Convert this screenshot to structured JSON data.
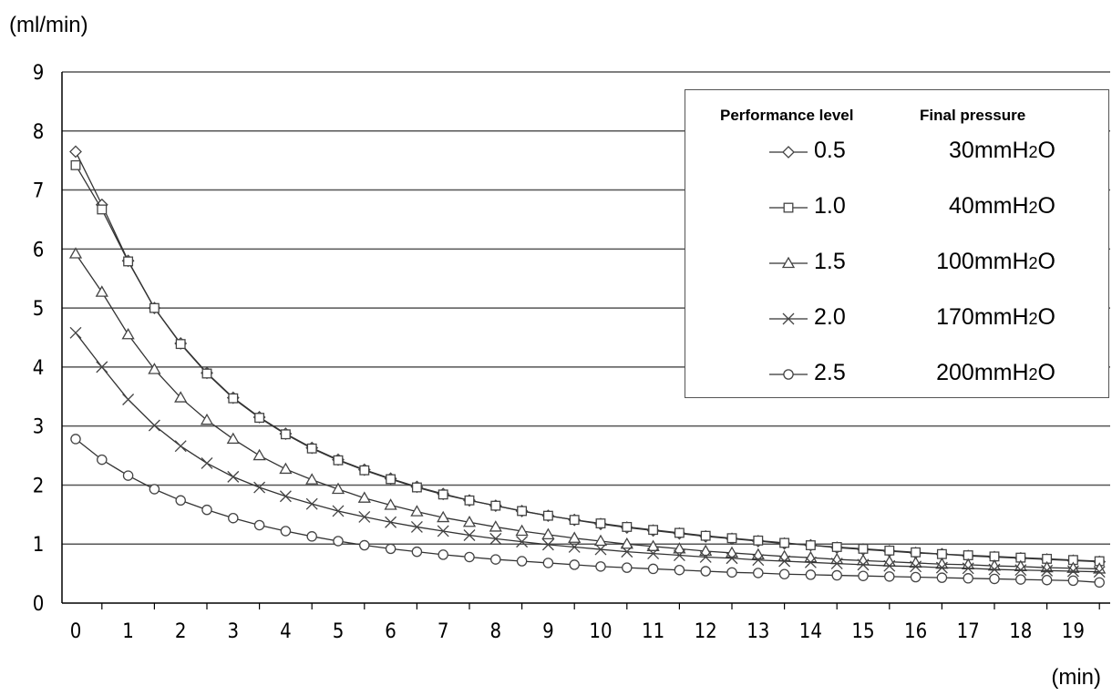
{
  "chart_data": {
    "type": "line",
    "ylabel": "(ml/min)",
    "xlabel": "(min)",
    "ylim": [
      0,
      9
    ],
    "xlim": [
      0,
      19.6
    ],
    "x_ticks": [
      "0",
      "1",
      "2",
      "3",
      "4",
      "5",
      "6",
      "7",
      "8",
      "9",
      "10",
      "11",
      "12",
      "13",
      "14",
      "15",
      "16",
      "17",
      "18",
      "19"
    ],
    "y_ticks": [
      "0",
      "1",
      "2",
      "3",
      "4",
      "5",
      "6",
      "7",
      "8",
      "9"
    ],
    "grid": "horizontal",
    "legend_position": "top-right",
    "legend_headers": {
      "level": "Performance level",
      "pressure": "Final pressure"
    },
    "x": [
      0,
      0.5,
      1,
      1.5,
      2,
      2.5,
      3,
      3.5,
      4,
      4.5,
      5,
      5.5,
      6,
      6.5,
      7,
      7.5,
      8,
      8.5,
      9,
      9.5,
      10,
      10.5,
      11,
      11.5,
      12,
      12.5,
      13,
      13.5,
      14,
      14.5,
      15,
      15.5,
      16,
      16.5,
      17,
      17.5,
      18,
      18.5,
      19,
      19.5
    ],
    "series": [
      {
        "name": "0.5",
        "pressure": "30mmH2O",
        "marker": "diamond",
        "values": [
          7.65,
          6.75,
          5.8,
          5.0,
          4.4,
          3.9,
          3.48,
          3.15,
          2.87,
          2.63,
          2.43,
          2.26,
          2.11,
          1.97,
          1.85,
          1.74,
          1.65,
          1.56,
          1.48,
          1.41,
          1.34,
          1.28,
          1.23,
          1.18,
          1.13,
          1.09,
          1.05,
          1.01,
          0.98,
          0.94,
          0.91,
          0.88,
          0.85,
          0.83,
          0.8,
          0.78,
          0.76,
          0.74,
          0.72,
          0.7
        ]
      },
      {
        "name": "1.0",
        "pressure": "40mmH2O",
        "marker": "square",
        "values": [
          7.42,
          6.67,
          5.79,
          5.0,
          4.39,
          3.89,
          3.47,
          3.14,
          2.86,
          2.62,
          2.42,
          2.25,
          2.1,
          1.96,
          1.84,
          1.74,
          1.65,
          1.56,
          1.48,
          1.41,
          1.35,
          1.29,
          1.24,
          1.19,
          1.14,
          1.1,
          1.06,
          1.02,
          0.98,
          0.95,
          0.92,
          0.89,
          0.86,
          0.83,
          0.81,
          0.79,
          0.77,
          0.75,
          0.73,
          0.71
        ]
      },
      {
        "name": "1.5",
        "pressure": "100mmH2O",
        "marker": "triangle",
        "values": [
          5.92,
          5.27,
          4.55,
          3.96,
          3.48,
          3.1,
          2.78,
          2.5,
          2.27,
          2.09,
          1.93,
          1.78,
          1.66,
          1.55,
          1.45,
          1.37,
          1.29,
          1.22,
          1.16,
          1.1,
          1.05,
          1.0,
          0.96,
          0.92,
          0.88,
          0.85,
          0.82,
          0.79,
          0.77,
          0.74,
          0.72,
          0.7,
          0.68,
          0.66,
          0.65,
          0.63,
          0.62,
          0.6,
          0.59,
          0.58
        ]
      },
      {
        "name": "2.0",
        "pressure": "170mmH2O",
        "marker": "x",
        "values": [
          4.58,
          4.0,
          3.45,
          3.01,
          2.66,
          2.37,
          2.14,
          1.96,
          1.81,
          1.68,
          1.56,
          1.46,
          1.37,
          1.29,
          1.22,
          1.15,
          1.09,
          1.04,
          0.99,
          0.95,
          0.91,
          0.87,
          0.84,
          0.81,
          0.78,
          0.76,
          0.73,
          0.71,
          0.69,
          0.67,
          0.65,
          0.63,
          0.62,
          0.6,
          0.59,
          0.57,
          0.56,
          0.55,
          0.54,
          0.53
        ]
      },
      {
        "name": "2.5",
        "pressure": "200mmH2O",
        "marker": "circle",
        "values": [
          2.78,
          2.43,
          2.16,
          1.93,
          1.74,
          1.58,
          1.44,
          1.32,
          1.22,
          1.13,
          1.05,
          0.98,
          0.92,
          0.87,
          0.82,
          0.78,
          0.74,
          0.71,
          0.68,
          0.65,
          0.62,
          0.6,
          0.58,
          0.56,
          0.54,
          0.52,
          0.51,
          0.49,
          0.48,
          0.47,
          0.46,
          0.45,
          0.44,
          0.43,
          0.42,
          0.41,
          0.4,
          0.39,
          0.38,
          0.35
        ]
      }
    ]
  }
}
